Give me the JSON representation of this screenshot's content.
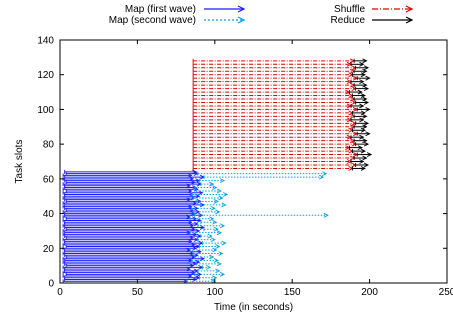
{
  "chart_data": {
    "type": "timeline",
    "title": "",
    "xlabel": "Time (in seconds)",
    "ylabel": "Task slots",
    "xlim": [
      0,
      250
    ],
    "ylim": [
      0,
      140
    ],
    "xticks": [
      0,
      50,
      100,
      150,
      200,
      250
    ],
    "yticks": [
      0,
      20,
      40,
      60,
      80,
      100,
      120,
      140
    ],
    "grid": false,
    "legend_position": "top",
    "legend": [
      {
        "label": "Map (first wave)",
        "color": "#1a1aff",
        "style": "solid"
      },
      {
        "label": "Map (second wave)",
        "color": "#00a0e0",
        "style": "dotted"
      },
      {
        "label": "Shuffle",
        "color": "#e00000",
        "style": "dashdot"
      },
      {
        "label": "Reduce",
        "color": "#000000",
        "style": "solid"
      }
    ],
    "series": [
      {
        "name": "Map (first wave)",
        "color": "#1a1aff",
        "slots": [
          1,
          2,
          3,
          4,
          5,
          6,
          7,
          8,
          9,
          10,
          11,
          12,
          13,
          14,
          15,
          16,
          17,
          18,
          19,
          20,
          21,
          22,
          23,
          24,
          25,
          26,
          27,
          28,
          29,
          30,
          31,
          32,
          33,
          34,
          35,
          36,
          37,
          38,
          39,
          40,
          41,
          42,
          43,
          44,
          45,
          46,
          47,
          48,
          49,
          50,
          51,
          52,
          53,
          54,
          55,
          56,
          57,
          58,
          59,
          60,
          61,
          62,
          63,
          64
        ],
        "start": [
          2,
          3,
          3,
          2,
          4,
          2,
          3,
          3,
          2,
          4,
          3,
          2,
          3,
          2,
          4,
          3,
          2,
          3,
          3,
          2,
          4,
          2,
          3,
          3,
          2,
          4,
          3,
          2,
          3,
          2,
          4,
          3,
          2,
          3,
          3,
          2,
          4,
          2,
          3,
          3,
          2,
          4,
          3,
          2,
          3,
          2,
          4,
          3,
          2,
          3,
          3,
          2,
          4,
          2,
          3,
          3,
          2,
          4,
          3,
          2,
          3,
          2,
          4,
          3
        ],
        "end": [
          82,
          88,
          90,
          85,
          91,
          87,
          89,
          84,
          92,
          86,
          88,
          90,
          85,
          93,
          87,
          89,
          86,
          91,
          84,
          88,
          90,
          87,
          92,
          85,
          89,
          86,
          91,
          88,
          84,
          90,
          87,
          93,
          86,
          89,
          85,
          91,
          88,
          84,
          92,
          87,
          90,
          86,
          89,
          85,
          93,
          88,
          91,
          84,
          87,
          90,
          86,
          92,
          85,
          89,
          88,
          84,
          91,
          87,
          90,
          86,
          93,
          85,
          89,
          88
        ]
      },
      {
        "name": "Map (second wave)",
        "color": "#00a0e0",
        "slots": [
          1,
          3,
          5,
          7,
          9,
          11,
          13,
          15,
          17,
          19,
          21,
          23,
          25,
          27,
          29,
          31,
          33,
          35,
          37,
          39,
          41,
          43,
          45,
          47,
          49,
          51,
          53,
          55,
          57,
          59,
          61,
          63
        ],
        "start": [
          82,
          90,
          87,
          89,
          92,
          88,
          85,
          87,
          86,
          84,
          90,
          92,
          89,
          91,
          84,
          93,
          89,
          91,
          84,
          87,
          86,
          85,
          91,
          88,
          86,
          85,
          88,
          87,
          91,
          90,
          93,
          89
        ],
        "end": [
          100,
          101,
          106,
          103,
          97,
          104,
          102,
          99,
          105,
          101,
          103,
          107,
          100,
          98,
          104,
          102,
          106,
          101,
          99,
          173,
          103,
          100,
          107,
          102,
          105,
          108,
          104,
          101,
          99,
          106,
          170,
          172
        ]
      },
      {
        "name": "Shuffle",
        "color": "#e00000",
        "slots": [
          66,
          68,
          70,
          72,
          74,
          76,
          78,
          80,
          82,
          84,
          86,
          88,
          90,
          92,
          94,
          96,
          98,
          100,
          102,
          104,
          106,
          108,
          110,
          112,
          114,
          116,
          118,
          120,
          122,
          124,
          126,
          128
        ],
        "start": [
          86,
          86,
          86,
          86,
          86,
          86,
          86,
          86,
          86,
          86,
          86,
          86,
          86,
          86,
          86,
          86,
          86,
          86,
          86,
          86,
          86,
          86,
          86,
          86,
          86,
          86,
          86,
          86,
          86,
          86,
          86,
          86
        ],
        "end": [
          189,
          191,
          188,
          190,
          192,
          189,
          187,
          191,
          190,
          188,
          192,
          189,
          190,
          191,
          188,
          190,
          189,
          192,
          188,
          191,
          190,
          189,
          187,
          191,
          190,
          188,
          192,
          189,
          190,
          191,
          188,
          190
        ]
      },
      {
        "name": "Reduce",
        "color": "#000000",
        "slots": [
          66,
          68,
          70,
          72,
          74,
          76,
          78,
          80,
          82,
          84,
          86,
          88,
          90,
          92,
          94,
          96,
          98,
          100,
          102,
          104,
          106,
          108,
          110,
          112,
          114,
          116,
          118,
          120,
          122,
          124,
          126,
          128
        ],
        "start": [
          189,
          191,
          188,
          190,
          192,
          189,
          187,
          191,
          190,
          188,
          192,
          189,
          190,
          191,
          188,
          190,
          189,
          192,
          188,
          191,
          190,
          189,
          187,
          191,
          190,
          188,
          192,
          189,
          190,
          191,
          188,
          190
        ],
        "end": [
          197,
          199,
          196,
          198,
          201,
          197,
          195,
          199,
          198,
          196,
          200,
          197,
          198,
          199,
          196,
          198,
          197,
          200,
          196,
          199,
          198,
          197,
          195,
          199,
          198,
          196,
          200,
          197,
          198,
          199,
          196,
          198
        ]
      }
    ]
  }
}
